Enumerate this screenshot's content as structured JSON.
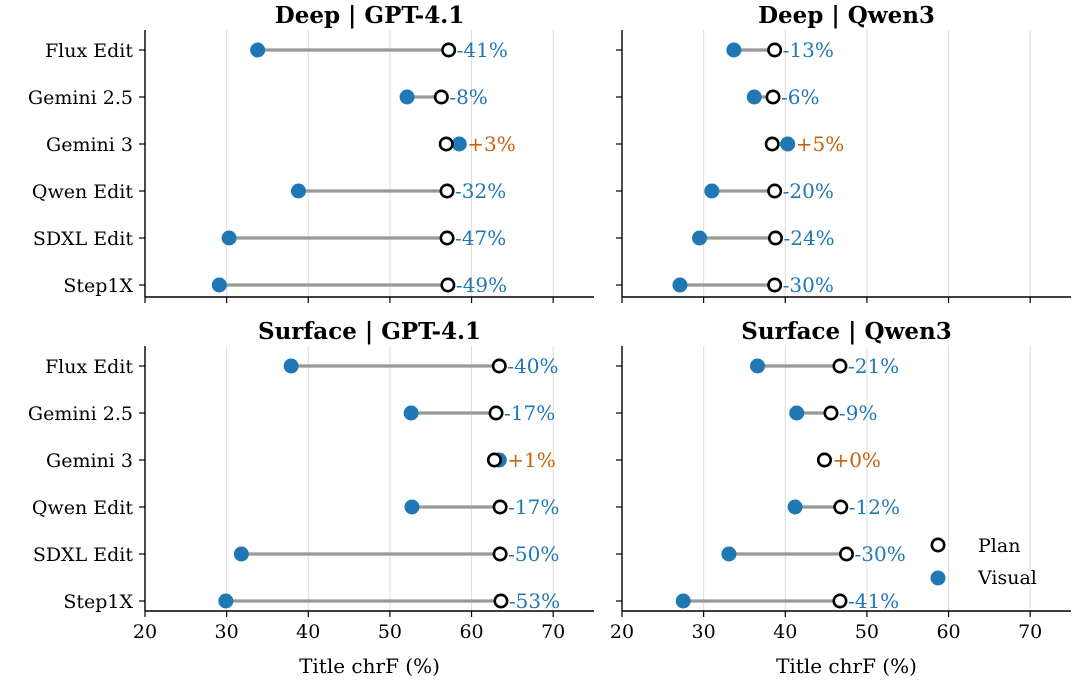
{
  "colors": {
    "visual": "#1f77b4",
    "plan_stroke": "#000000",
    "plan_fill": "#ffffff",
    "connector": "#999999",
    "decrease": "#1f77b4",
    "increase": "#c9620c",
    "grid": "#dddddd"
  },
  "legend": {
    "plan": "Plan",
    "visual": "Visual",
    "position": "lower-right of bottom-right panel"
  },
  "chart_data": [
    {
      "type": "dumbbell",
      "title": "Deep | GPT-4.1",
      "xlabel": "",
      "xlim": [
        20,
        75
      ],
      "xticks": [
        20,
        30,
        40,
        50,
        60,
        70
      ],
      "grid": "vertical",
      "categories": [
        "Flux Edit",
        "Gemini 2.5",
        "Gemini 3",
        "Qwen Edit",
        "SDXL Edit",
        "Step1X"
      ],
      "series": [
        {
          "name": "Plan",
          "values": [
            57.2,
            56.3,
            56.9,
            57.0,
            57.0,
            57.1
          ]
        },
        {
          "name": "Visual",
          "values": [
            33.8,
            52.1,
            58.5,
            38.8,
            30.3,
            29.1
          ]
        }
      ],
      "annotations": [
        "-41%",
        "-8%",
        "+3%",
        "-32%",
        "-47%",
        "-49%"
      ]
    },
    {
      "type": "dumbbell",
      "title": "Deep | Qwen3",
      "xlabel": "",
      "xlim": [
        20,
        75
      ],
      "xticks": [
        20,
        30,
        40,
        50,
        60,
        70
      ],
      "grid": "vertical",
      "categories": [
        "Flux Edit",
        "Gemini 2.5",
        "Gemini 3",
        "Qwen Edit",
        "SDXL Edit",
        "Step1X"
      ],
      "series": [
        {
          "name": "Plan",
          "values": [
            38.7,
            38.5,
            38.4,
            38.7,
            38.8,
            38.7
          ]
        },
        {
          "name": "Visual",
          "values": [
            33.7,
            36.2,
            40.3,
            31.0,
            29.5,
            27.1
          ]
        }
      ],
      "annotations": [
        "-13%",
        "-6%",
        "+5%",
        "-20%",
        "-24%",
        "-30%"
      ]
    },
    {
      "type": "dumbbell",
      "title": "Surface | GPT-4.1",
      "xlabel": "Title chrF (%)",
      "xlim": [
        20,
        75
      ],
      "xticks": [
        20,
        30,
        40,
        50,
        60,
        70
      ],
      "grid": "vertical",
      "categories": [
        "Flux Edit",
        "Gemini 2.5",
        "Gemini 3",
        "Qwen Edit",
        "SDXL Edit",
        "Step1X"
      ],
      "series": [
        {
          "name": "Plan",
          "values": [
            63.4,
            63.0,
            62.8,
            63.5,
            63.5,
            63.6
          ]
        },
        {
          "name": "Visual",
          "values": [
            37.9,
            52.6,
            63.4,
            52.7,
            31.8,
            29.9
          ]
        }
      ],
      "annotations": [
        "-40%",
        "-17%",
        "+1%",
        "-17%",
        "-50%",
        "-53%"
      ]
    },
    {
      "type": "dumbbell",
      "title": "Surface | Qwen3",
      "xlabel": "Title chrF (%)",
      "xlim": [
        20,
        75
      ],
      "xticks": [
        20,
        30,
        40,
        50,
        60,
        70
      ],
      "grid": "vertical",
      "categories": [
        "Flux Edit",
        "Gemini 2.5",
        "Gemini 3",
        "Qwen Edit",
        "SDXL Edit",
        "Step1X"
      ],
      "series": [
        {
          "name": "Plan",
          "values": [
            46.7,
            45.6,
            44.8,
            46.8,
            47.5,
            46.7
          ]
        },
        {
          "name": "Visual",
          "values": [
            36.6,
            41.4,
            44.8,
            41.2,
            33.1,
            27.5
          ]
        }
      ],
      "annotations": [
        "-21%",
        "-9%",
        "+0%",
        "-12%",
        "-30%",
        "-41%"
      ]
    }
  ]
}
